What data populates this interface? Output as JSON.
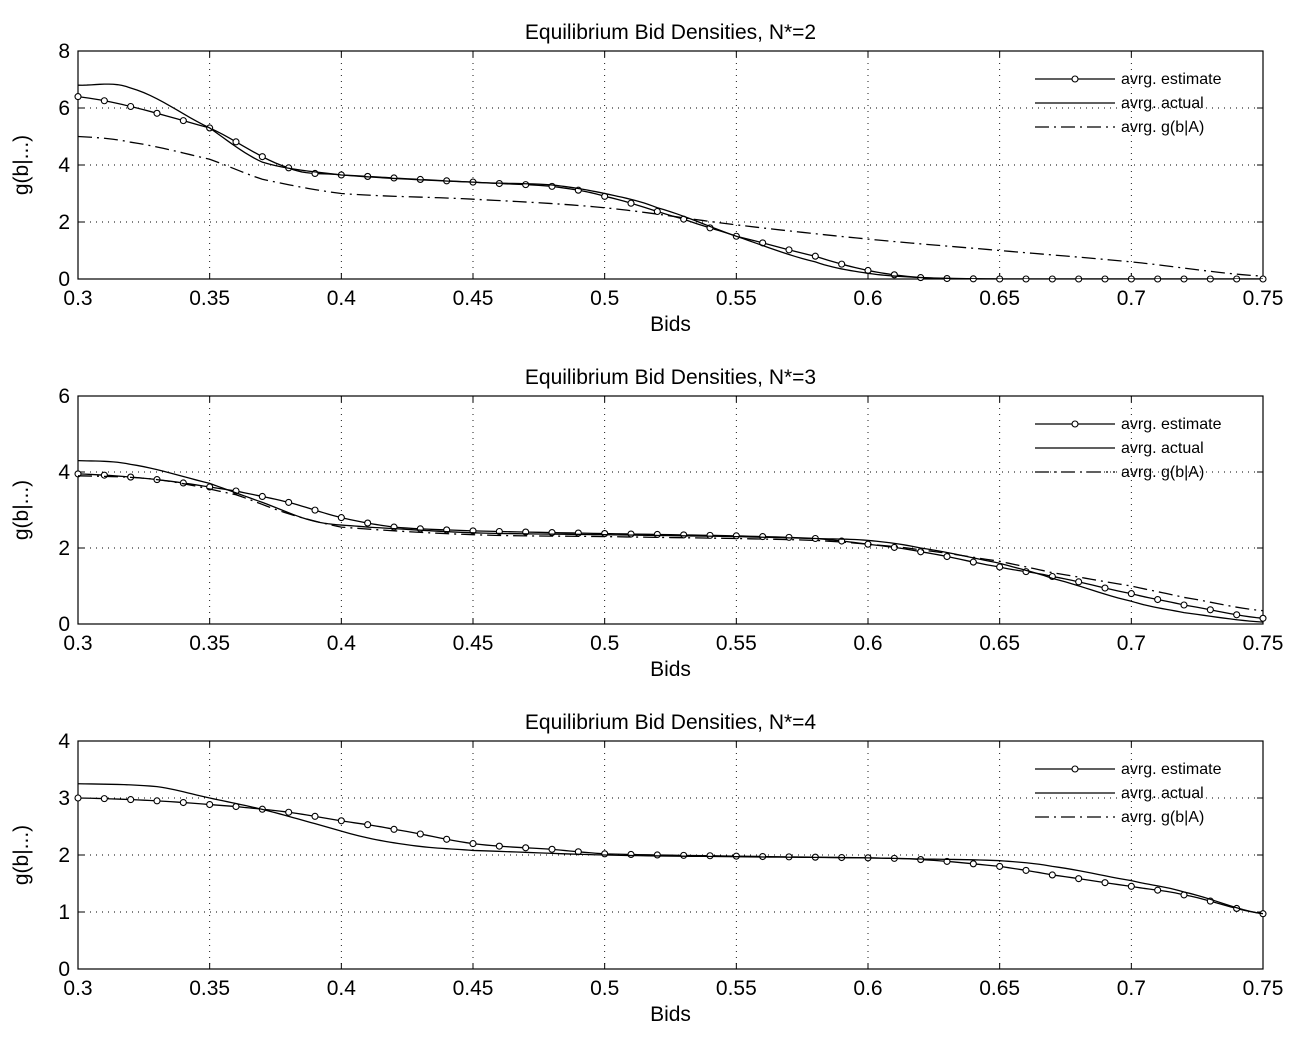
{
  "chart_data": [
    {
      "type": "line",
      "title": "Equilibrium Bid Densities, N*=2",
      "xlabel": "Bids",
      "ylabel": "g(b|...)",
      "xlim": [
        0.3,
        0.75
      ],
      "ylim": [
        0,
        8
      ],
      "xticks": [
        0.3,
        0.35,
        0.4,
        0.45,
        0.5,
        0.55,
        0.6,
        0.65,
        0.7,
        0.75
      ],
      "yticks": [
        0,
        2,
        4,
        6,
        8
      ],
      "grid": true,
      "legend_position": "top-right",
      "series": [
        {
          "name": "avrg. estimate",
          "style": "solid-circles",
          "x": [
            0.3,
            0.35,
            0.38,
            0.4,
            0.45,
            0.48,
            0.5,
            0.53,
            0.55,
            0.58,
            0.6,
            0.62,
            0.65,
            0.7,
            0.75
          ],
          "y": [
            6.4,
            5.3,
            3.9,
            3.65,
            3.4,
            3.25,
            2.9,
            2.1,
            1.5,
            0.8,
            0.3,
            0.05,
            0.0,
            0.0,
            0.0
          ]
        },
        {
          "name": "avrg. actual",
          "style": "solid",
          "x": [
            0.3,
            0.32,
            0.35,
            0.37,
            0.4,
            0.45,
            0.48,
            0.5,
            0.52,
            0.55,
            0.58,
            0.6,
            0.62,
            0.65,
            0.75
          ],
          "y": [
            6.8,
            6.7,
            5.3,
            4.1,
            3.65,
            3.4,
            3.3,
            3.0,
            2.5,
            1.5,
            0.6,
            0.2,
            0.05,
            0.0,
            0.0
          ]
        },
        {
          "name": "avrg. g(b|A)",
          "style": "dashdot",
          "x": [
            0.3,
            0.32,
            0.35,
            0.37,
            0.4,
            0.45,
            0.5,
            0.55,
            0.6,
            0.65,
            0.7,
            0.75
          ],
          "y": [
            5.0,
            4.8,
            4.2,
            3.5,
            3.0,
            2.8,
            2.5,
            1.9,
            1.4,
            1.0,
            0.6,
            0.1
          ]
        }
      ]
    },
    {
      "type": "line",
      "title": "Equilibrium Bid Densities, N*=3",
      "xlabel": "Bids",
      "ylabel": "g(b|...)",
      "xlim": [
        0.3,
        0.75
      ],
      "ylim": [
        0,
        6
      ],
      "xticks": [
        0.3,
        0.35,
        0.4,
        0.45,
        0.5,
        0.55,
        0.6,
        0.65,
        0.7,
        0.75
      ],
      "yticks": [
        0,
        2,
        4,
        6
      ],
      "grid": true,
      "legend_position": "top-right",
      "series": [
        {
          "name": "avrg. estimate",
          "style": "solid-circles",
          "x": [
            0.3,
            0.33,
            0.36,
            0.38,
            0.4,
            0.42,
            0.45,
            0.5,
            0.55,
            0.58,
            0.6,
            0.62,
            0.65,
            0.67,
            0.7,
            0.72,
            0.75
          ],
          "y": [
            3.95,
            3.8,
            3.5,
            3.2,
            2.8,
            2.55,
            2.45,
            2.38,
            2.32,
            2.25,
            2.1,
            1.9,
            1.5,
            1.25,
            0.8,
            0.5,
            0.15
          ]
        },
        {
          "name": "avrg. actual",
          "style": "solid",
          "x": [
            0.3,
            0.32,
            0.35,
            0.37,
            0.39,
            0.41,
            0.45,
            0.5,
            0.55,
            0.58,
            0.6,
            0.62,
            0.65,
            0.67,
            0.7,
            0.72,
            0.75
          ],
          "y": [
            4.3,
            4.2,
            3.7,
            3.2,
            2.7,
            2.55,
            2.4,
            2.35,
            2.3,
            2.25,
            2.2,
            2.0,
            1.6,
            1.2,
            0.6,
            0.3,
            0.05
          ]
        },
        {
          "name": "avrg. g(b|A)",
          "style": "dashdot",
          "x": [
            0.3,
            0.33,
            0.36,
            0.38,
            0.4,
            0.45,
            0.5,
            0.55,
            0.58,
            0.6,
            0.62,
            0.65,
            0.67,
            0.7,
            0.72,
            0.75
          ],
          "y": [
            3.9,
            3.8,
            3.4,
            2.9,
            2.55,
            2.35,
            2.3,
            2.25,
            2.2,
            2.1,
            1.95,
            1.65,
            1.35,
            1.0,
            0.7,
            0.35
          ]
        }
      ]
    },
    {
      "type": "line",
      "title": "Equilibrium Bid Densities, N*=4",
      "xlabel": "Bids",
      "ylabel": "g(b|...)",
      "xlim": [
        0.3,
        0.75
      ],
      "ylim": [
        0,
        4
      ],
      "xticks": [
        0.3,
        0.35,
        0.4,
        0.45,
        0.5,
        0.55,
        0.6,
        0.65,
        0.7,
        0.75
      ],
      "yticks": [
        0,
        1,
        2,
        3,
        4
      ],
      "grid": true,
      "legend_position": "top-right",
      "series": [
        {
          "name": "avrg. estimate",
          "style": "solid-circles",
          "x": [
            0.3,
            0.33,
            0.36,
            0.38,
            0.4,
            0.42,
            0.45,
            0.48,
            0.5,
            0.55,
            0.6,
            0.62,
            0.65,
            0.67,
            0.7,
            0.72,
            0.75
          ],
          "y": [
            3.0,
            2.95,
            2.85,
            2.75,
            2.6,
            2.45,
            2.2,
            2.1,
            2.02,
            1.98,
            1.95,
            1.92,
            1.8,
            1.65,
            1.45,
            1.3,
            0.97
          ]
        },
        {
          "name": "avrg. actual",
          "style": "solid",
          "x": [
            0.3,
            0.33,
            0.35,
            0.37,
            0.39,
            0.41,
            0.43,
            0.45,
            0.5,
            0.55,
            0.6,
            0.62,
            0.65,
            0.67,
            0.7,
            0.72,
            0.75
          ],
          "y": [
            3.25,
            3.2,
            3.0,
            2.8,
            2.55,
            2.3,
            2.15,
            2.08,
            2.0,
            1.97,
            1.95,
            1.93,
            1.9,
            1.8,
            1.55,
            1.35,
            0.97
          ]
        },
        {
          "name": "avrg. g(b|A)",
          "style": "dashdot",
          "x": [],
          "y": []
        }
      ]
    }
  ]
}
